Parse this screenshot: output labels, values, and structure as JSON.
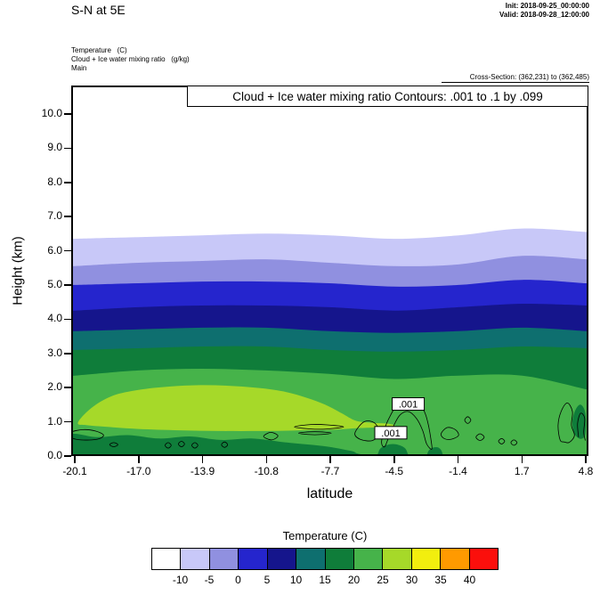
{
  "header": {
    "title": "S-N at 5E",
    "init": "Init: 2018-09-25_00:00:00",
    "valid": "Valid: 2018-09-28_12:00:00"
  },
  "info": {
    "line1": "Temperature   (C)",
    "line2": "Cloud + Ice water mixing ratio   (g/kg)",
    "line3": "Main"
  },
  "cross_section": "Cross-Section: (362,231) to (362,485)",
  "plot": {
    "annotation": "Cloud + Ice water mixing ratio Contours: .001 to .1 by .099",
    "ylabel": "Height (km)",
    "xlabel": "latitude",
    "y_ticks": [
      "0.0",
      "1.0",
      "2.0",
      "3.0",
      "4.0",
      "5.0",
      "6.0",
      "7.0",
      "8.0",
      "9.0",
      "10.0"
    ],
    "x_ticks": [
      "-20.1",
      "-17.0",
      "-13.9",
      "-10.8",
      "-7.7",
      "-4.5",
      "-1.4",
      "1.7",
      "4.8"
    ]
  },
  "colorbar": {
    "title": "Temperature  (C)",
    "cell_colors": [
      "#ffffff",
      "#c8c8f8",
      "#9090e0",
      "#2525cd",
      "#15158c",
      "#0e6f6f",
      "#0f7d3a",
      "#46b34a",
      "#a6d929",
      "#f2ee0e",
      "#ff9a00",
      "#fb0f0c"
    ],
    "tick_labels": [
      "-10",
      "-5",
      "0",
      "5",
      "10",
      "15",
      "20",
      "25",
      "30",
      "35",
      "40"
    ]
  },
  "chart_data": {
    "type": "heatmap",
    "subtype": "filled-contour-vertical-cross-section",
    "title": "Cloud + Ice water mixing ratio Contours: .001 to .1 by .099",
    "xlabel": "latitude",
    "ylabel": "Height (km)",
    "xlim": [
      -20.1,
      4.8
    ],
    "ylim_km": [
      0,
      10.8
    ],
    "grid": false,
    "background_color": "#ffffff",
    "x_latitudes": [
      -20.1,
      -17.0,
      -13.9,
      -10.8,
      -7.7,
      -4.5,
      -1.4,
      1.7,
      4.8
    ],
    "bands": [
      {
        "boundary_C": -10,
        "color": "#c8c8f8",
        "heights_km": [
          6.3,
          6.35,
          6.4,
          6.45,
          6.4,
          6.3,
          6.4,
          6.6,
          6.5
        ]
      },
      {
        "boundary_C": -5,
        "color": "#9090e0",
        "heights_km": [
          5.5,
          5.6,
          5.65,
          5.7,
          5.6,
          5.5,
          5.55,
          5.8,
          5.7
        ]
      },
      {
        "boundary_C": 0,
        "color": "#2525cd",
        "heights_km": [
          4.95,
          5.0,
          5.05,
          5.05,
          5.0,
          4.9,
          4.95,
          5.1,
          5.0
        ]
      },
      {
        "boundary_C": 5,
        "color": "#15158c",
        "heights_km": [
          4.2,
          4.3,
          4.35,
          4.35,
          4.3,
          4.2,
          4.3,
          4.4,
          4.35
        ]
      },
      {
        "boundary_C": 10,
        "color": "#0e6f6f",
        "heights_km": [
          3.6,
          3.65,
          3.7,
          3.7,
          3.6,
          3.55,
          3.6,
          3.7,
          3.6
        ]
      },
      {
        "boundary_C": 15,
        "color": "#0f7d3a",
        "heights_km": [
          3.05,
          3.1,
          3.15,
          3.15,
          3.05,
          3.0,
          3.05,
          3.15,
          3.1
        ]
      },
      {
        "boundary_C": 20,
        "color": "#46b34a",
        "heights_km": [
          2.3,
          2.45,
          2.5,
          2.45,
          2.35,
          2.2,
          2.3,
          2.3,
          1.9
        ]
      }
    ],
    "warm_patch": {
      "band_C": "25-30",
      "color": "#a6d929",
      "points": [
        [
          -19.95,
          0.92
        ],
        [
          -19.3,
          1.35
        ],
        [
          -18.3,
          1.7
        ],
        [
          -17.0,
          1.88
        ],
        [
          -15.5,
          1.98
        ],
        [
          -14.0,
          2.02
        ],
        [
          -12.5,
          2.0
        ],
        [
          -11.0,
          1.93
        ],
        [
          -9.8,
          1.82
        ],
        [
          -8.8,
          1.65
        ],
        [
          -7.9,
          1.45
        ],
        [
          -7.1,
          1.2
        ],
        [
          -6.4,
          0.98
        ],
        [
          -5.6,
          0.92
        ],
        [
          -4.9,
          0.9
        ],
        [
          -4.5,
          0.84
        ],
        [
          -4.9,
          0.8
        ],
        [
          -5.6,
          0.78
        ],
        [
          -6.4,
          0.76
        ],
        [
          -7.5,
          0.72
        ],
        [
          -9.0,
          0.7
        ],
        [
          -11.0,
          0.68
        ],
        [
          -13.0,
          0.68
        ],
        [
          -15.0,
          0.7
        ],
        [
          -17.0,
          0.74
        ],
        [
          -18.5,
          0.8
        ],
        [
          -19.5,
          0.85
        ]
      ]
    },
    "surface_cool_patches": [
      {
        "color": "#0f7d3a",
        "points": [
          [
            -20.35,
            0.56
          ],
          [
            -19.0,
            0.5
          ],
          [
            -17.5,
            0.56
          ],
          [
            -16.0,
            0.46
          ],
          [
            -14.5,
            0.52
          ],
          [
            -13.0,
            0.42
          ],
          [
            -11.5,
            0.46
          ],
          [
            -10.0,
            0.36
          ],
          [
            -9.0,
            0.3
          ],
          [
            -8.0,
            0.24
          ],
          [
            -7.0,
            0.14
          ],
          [
            -6.4,
            0.04
          ],
          [
            -6.4,
            -0.2
          ],
          [
            -20.35,
            -0.2
          ]
        ]
      },
      {
        "color": "#0f7d3a",
        "points": [
          [
            -5.3,
            0.06
          ],
          [
            -5.1,
            0.22
          ],
          [
            -4.6,
            0.3
          ],
          [
            -4.1,
            0.22
          ],
          [
            -3.9,
            0.06
          ],
          [
            -3.9,
            -0.2
          ],
          [
            -5.3,
            -0.2
          ]
        ]
      },
      {
        "color": "#0f7d3a",
        "points": [
          [
            -2.9,
            0.05
          ],
          [
            -2.7,
            0.18
          ],
          [
            -2.4,
            0.2
          ],
          [
            -2.2,
            0.06
          ],
          [
            -2.2,
            -0.2
          ],
          [
            -2.9,
            -0.2
          ]
        ]
      },
      {
        "color": "#0f7d3a",
        "points": [
          [
            4.25,
            0.6
          ],
          [
            4.15,
            0.95
          ],
          [
            4.3,
            1.3
          ],
          [
            4.55,
            1.45
          ],
          [
            4.78,
            1.2
          ],
          [
            4.78,
            0.6
          ],
          [
            4.55,
            0.45
          ]
        ]
      }
    ],
    "cloud_contours": {
      "level_g_per_kg": 0.001,
      "color": "#000000",
      "paths": [
        {
          "closed": true,
          "pts": [
            [
              -20.3,
              0.64
            ],
            [
              -19.7,
              0.72
            ],
            [
              -19.1,
              0.68
            ],
            [
              -18.7,
              0.56
            ],
            [
              -19.0,
              0.44
            ],
            [
              -19.8,
              0.42
            ],
            [
              -20.3,
              0.5
            ]
          ]
        },
        {
          "closed": true,
          "pts": [
            [
              -18.4,
              0.28
            ],
            [
              -18.2,
              0.34
            ],
            [
              -18.0,
              0.28
            ],
            [
              -18.2,
              0.22
            ]
          ]
        },
        {
          "closed": true,
          "pts": [
            [
              -15.7,
              0.26
            ],
            [
              -15.55,
              0.34
            ],
            [
              -15.4,
              0.26
            ],
            [
              -15.55,
              0.18
            ]
          ]
        },
        {
          "closed": true,
          "pts": [
            [
              -15.05,
              0.3
            ],
            [
              -14.9,
              0.38
            ],
            [
              -14.75,
              0.3
            ],
            [
              -14.9,
              0.22
            ]
          ]
        },
        {
          "closed": true,
          "pts": [
            [
              -14.4,
              0.26
            ],
            [
              -14.25,
              0.34
            ],
            [
              -14.1,
              0.26
            ],
            [
              -14.25,
              0.18
            ]
          ]
        },
        {
          "closed": true,
          "pts": [
            [
              -12.95,
              0.28
            ],
            [
              -12.8,
              0.36
            ],
            [
              -12.65,
              0.28
            ],
            [
              -12.8,
              0.2
            ]
          ]
        },
        {
          "closed": true,
          "pts": [
            [
              -10.9,
              0.52
            ],
            [
              -10.55,
              0.64
            ],
            [
              -10.2,
              0.54
            ],
            [
              -10.5,
              0.42
            ]
          ]
        },
        {
          "closed": true,
          "pts": [
            [
              -9.4,
              0.8
            ],
            [
              -8.6,
              0.87
            ],
            [
              -7.8,
              0.86
            ],
            [
              -7.0,
              0.8
            ],
            [
              -7.8,
              0.74
            ],
            [
              -8.6,
              0.74
            ]
          ]
        },
        {
          "closed": true,
          "pts": [
            [
              -9.2,
              0.62
            ],
            [
              -8.4,
              0.66
            ],
            [
              -7.6,
              0.62
            ],
            [
              -8.4,
              0.57
            ]
          ]
        },
        {
          "closed": true,
          "pts": [
            [
              -6.45,
              0.62
            ],
            [
              -6.0,
              0.95
            ],
            [
              -5.5,
              0.92
            ],
            [
              -5.25,
              0.62
            ],
            [
              -5.6,
              0.4
            ],
            [
              -6.2,
              0.44
            ]
          ]
        },
        {
          "closed": true,
          "pts": [
            [
              -5.15,
              0.35
            ],
            [
              -5.0,
              0.75
            ],
            [
              -4.75,
              1.1
            ],
            [
              -4.45,
              1.4
            ],
            [
              -4.05,
              1.58
            ],
            [
              -3.6,
              1.6
            ],
            [
              -3.25,
              1.45
            ],
            [
              -3.0,
              1.15
            ],
            [
              -2.85,
              0.8
            ],
            [
              -2.75,
              0.45
            ],
            [
              -2.7,
              0.15
            ],
            [
              -2.95,
              0.3
            ],
            [
              -3.15,
              0.7
            ],
            [
              -3.45,
              1.05
            ],
            [
              -3.85,
              1.25
            ],
            [
              -4.25,
              1.15
            ],
            [
              -4.55,
              0.85
            ],
            [
              -4.8,
              0.5
            ],
            [
              -5.0,
              0.22
            ]
          ]
        },
        {
          "closed": true,
          "pts": [
            [
              -2.25,
              0.6
            ],
            [
              -1.95,
              0.78
            ],
            [
              -1.55,
              0.72
            ],
            [
              -1.4,
              0.55
            ],
            [
              -1.75,
              0.44
            ],
            [
              -2.1,
              0.46
            ]
          ]
        },
        {
          "closed": true,
          "pts": [
            [
              -1.1,
              1.0
            ],
            [
              -0.95,
              1.1
            ],
            [
              -0.8,
              1.0
            ],
            [
              -0.95,
              0.9
            ]
          ]
        },
        {
          "closed": true,
          "pts": [
            [
              -0.55,
              0.5
            ],
            [
              -0.35,
              0.6
            ],
            [
              -0.15,
              0.5
            ],
            [
              -0.35,
              0.4
            ]
          ]
        },
        {
          "closed": true,
          "pts": [
            [
              0.55,
              0.38
            ],
            [
              0.7,
              0.46
            ],
            [
              0.85,
              0.38
            ],
            [
              0.7,
              0.3
            ]
          ]
        },
        {
          "closed": true,
          "pts": [
            [
              1.15,
              0.34
            ],
            [
              1.3,
              0.42
            ],
            [
              1.45,
              0.34
            ],
            [
              1.3,
              0.26
            ]
          ]
        },
        {
          "closed": true,
          "pts": [
            [
              3.55,
              0.42
            ],
            [
              3.45,
              0.85
            ],
            [
              3.6,
              1.25
            ],
            [
              3.9,
              1.5
            ],
            [
              4.15,
              1.25
            ],
            [
              4.1,
              0.85
            ],
            [
              4.25,
              0.55
            ],
            [
              4.0,
              0.35
            ],
            [
              3.75,
              0.36
            ]
          ]
        },
        {
          "closed": false,
          "pts": [
            [
              4.45,
              0.5
            ],
            [
              4.4,
              0.9
            ],
            [
              4.55,
              1.2
            ],
            [
              4.75,
              1.05
            ],
            [
              4.7,
              0.65
            ],
            [
              4.78,
              0.4
            ]
          ]
        }
      ]
    },
    "contour_labels": [
      {
        "text": ".001",
        "lat": -3.85,
        "height_km": 1.47
      },
      {
        "text": ".001",
        "lat": -4.7,
        "height_km": 0.63
      }
    ]
  }
}
